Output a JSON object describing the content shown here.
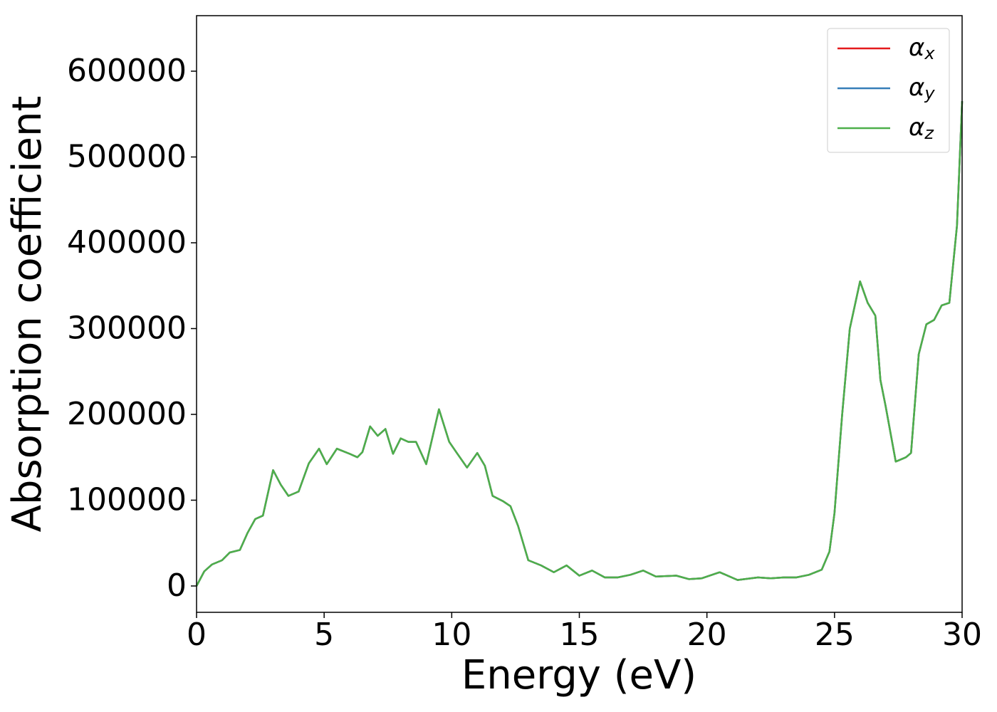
{
  "chart_data": {
    "type": "line",
    "x_label": "Energy (eV)",
    "y_label": "Absorption coefficient",
    "x": [
      0,
      0.3,
      0.6,
      1.0,
      1.3,
      1.7,
      2.0,
      2.3,
      2.6,
      3.0,
      3.3,
      3.6,
      4.0,
      4.4,
      4.8,
      5.1,
      5.5,
      6.0,
      6.3,
      6.5,
      6.8,
      7.1,
      7.4,
      7.7,
      8.0,
      8.3,
      8.6,
      9.0,
      9.5,
      9.9,
      10.2,
      10.6,
      11.0,
      11.3,
      11.6,
      12.0,
      12.3,
      12.6,
      13.0,
      13.5,
      14.0,
      14.5,
      15.0,
      15.5,
      16.0,
      16.5,
      17.0,
      17.5,
      18.0,
      18.8,
      19.3,
      19.8,
      20.5,
      21.2,
      22.0,
      22.5,
      23.0,
      23.5,
      24.0,
      24.5,
      24.8,
      25.0,
      25.3,
      25.6,
      26.0,
      26.3,
      26.6,
      26.8,
      27.0,
      27.4,
      27.8,
      28.0,
      28.3,
      28.6,
      28.9,
      29.2,
      29.5,
      29.8,
      30.0
    ],
    "series": [
      {
        "name": "αx",
        "color": "#e41a1c",
        "values": [
          0,
          17000,
          25000,
          30000,
          39000,
          42000,
          62000,
          78000,
          82000,
          135000,
          118000,
          105000,
          110000,
          143000,
          160000,
          142000,
          160000,
          154000,
          150000,
          156000,
          186000,
          175000,
          183000,
          154000,
          172000,
          168000,
          168000,
          142000,
          206000,
          168000,
          155000,
          138000,
          155000,
          140000,
          105000,
          99000,
          93000,
          70000,
          30000,
          24000,
          16000,
          24000,
          12000,
          18000,
          10000,
          10000,
          13000,
          18000,
          11000,
          12000,
          8000,
          9000,
          16000,
          7000,
          10000,
          9000,
          10000,
          10000,
          13000,
          19000,
          40000,
          85000,
          200000,
          300000,
          355000,
          330000,
          315000,
          240000,
          210000,
          145000,
          150000,
          155000,
          270000,
          305000,
          310000,
          327000,
          330000,
          420000,
          565000
        ]
      },
      {
        "name": "αy",
        "color": "#377eb8",
        "values": [
          0,
          17000,
          25000,
          30000,
          39000,
          42000,
          62000,
          78000,
          82000,
          135000,
          118000,
          105000,
          110000,
          143000,
          160000,
          142000,
          160000,
          154000,
          150000,
          156000,
          186000,
          175000,
          183000,
          154000,
          172000,
          168000,
          168000,
          142000,
          206000,
          168000,
          155000,
          138000,
          155000,
          140000,
          105000,
          99000,
          93000,
          70000,
          30000,
          24000,
          16000,
          24000,
          12000,
          18000,
          10000,
          10000,
          13000,
          18000,
          11000,
          12000,
          8000,
          9000,
          16000,
          7000,
          10000,
          9000,
          10000,
          10000,
          13000,
          19000,
          40000,
          85000,
          200000,
          300000,
          355000,
          330000,
          315000,
          240000,
          210000,
          145000,
          150000,
          155000,
          270000,
          305000,
          310000,
          327000,
          330000,
          420000,
          565000
        ]
      },
      {
        "name": "αz",
        "color": "#4daf4a",
        "values": [
          0,
          17000,
          25000,
          30000,
          39000,
          42000,
          62000,
          78000,
          82000,
          135000,
          118000,
          105000,
          110000,
          143000,
          160000,
          142000,
          160000,
          154000,
          150000,
          156000,
          186000,
          175000,
          183000,
          154000,
          172000,
          168000,
          168000,
          142000,
          206000,
          168000,
          155000,
          138000,
          155000,
          140000,
          105000,
          99000,
          93000,
          70000,
          30000,
          24000,
          16000,
          24000,
          12000,
          18000,
          10000,
          10000,
          13000,
          18000,
          11000,
          12000,
          8000,
          9000,
          16000,
          7000,
          10000,
          9000,
          10000,
          10000,
          13000,
          19000,
          40000,
          85000,
          200000,
          300000,
          355000,
          330000,
          315000,
          240000,
          210000,
          145000,
          150000,
          155000,
          270000,
          305000,
          310000,
          327000,
          330000,
          420000,
          565000
        ]
      }
    ],
    "xlim": [
      0,
      30
    ],
    "xticks": [
      0,
      5,
      10,
      15,
      20,
      25,
      30
    ],
    "ylim": [
      -30700,
      664700
    ],
    "yticks": [
      0,
      100000,
      200000,
      300000,
      400000,
      500000,
      600000
    ],
    "legend": "upper right",
    "grid": false
  }
}
